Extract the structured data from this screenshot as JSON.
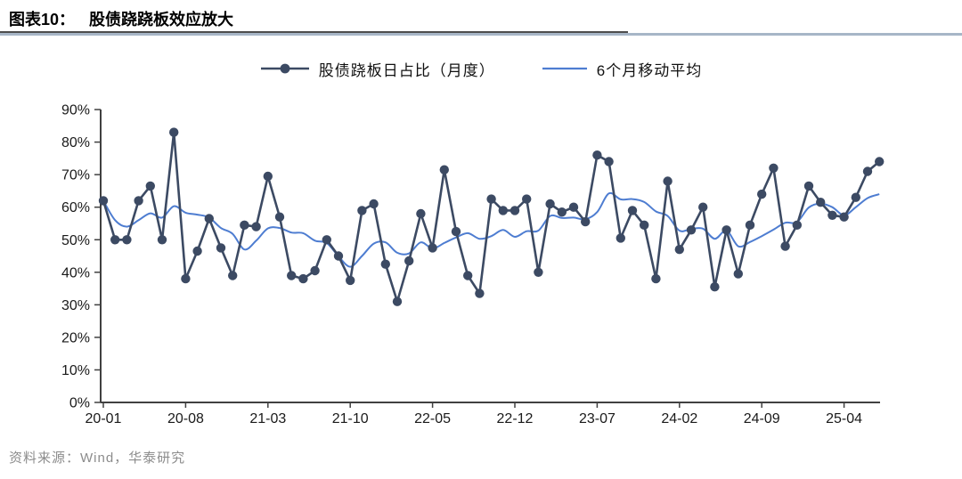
{
  "header": {
    "figure_label": "图表10：",
    "title": "股债跷跷板效应放大"
  },
  "legend": {
    "items": [
      {
        "label": "股债跷板日占比（月度）",
        "swatch": "line-with-dot-marker"
      },
      {
        "label": "6个月移动平均",
        "swatch": "line"
      }
    ]
  },
  "footer": {
    "source": "资料来源：Wind，华泰研究"
  },
  "colors": {
    "series_main": "#3C4A63",
    "series_ma": "#4E7DD1",
    "axis": "#404040",
    "tick_label": "#1a1a1a",
    "title_rule_dark": "#4d4d4d",
    "title_rule_blue": "#A7B6C7",
    "source_text": "#8c8c8c"
  },
  "chart_data": {
    "type": "line",
    "title": "股债跷跷板效应放大",
    "x_start": "2020-01",
    "x_freq": "monthly",
    "n_points": 67,
    "x_tick_labels": [
      "20-01",
      "20-08",
      "21-03",
      "21-10",
      "22-05",
      "22-12",
      "23-07",
      "24-02",
      "24-09",
      "25-04"
    ],
    "x_tick_indices": [
      0,
      7,
      14,
      21,
      28,
      35,
      42,
      49,
      56,
      63
    ],
    "ylim": [
      0,
      90
    ],
    "y_ticks": [
      0,
      10,
      20,
      30,
      40,
      50,
      60,
      70,
      80,
      90
    ],
    "y_tick_suffix": "%",
    "grid": false,
    "legend_position": "top-center",
    "series": [
      {
        "name": "股债跷板日占比（月度）",
        "style": "line+marker",
        "values": [
          62,
          50,
          50,
          62,
          66.5,
          50,
          83,
          38,
          46.5,
          56.5,
          47.5,
          39,
          54.5,
          54,
          69.5,
          57,
          39,
          38,
          40.5,
          50,
          45,
          37.5,
          59,
          61,
          42.5,
          31,
          43.5,
          58,
          47.5,
          71.5,
          52.5,
          39,
          33.5,
          62.5,
          59,
          59,
          62.5,
          40,
          61,
          58.5,
          60,
          55.5,
          76,
          74,
          50.5,
          59,
          54.5,
          38,
          68,
          47,
          53,
          60,
          35.5,
          53,
          39.5,
          54.5,
          64,
          72,
          48,
          54.5,
          66.5,
          61.5,
          57.5,
          57,
          63,
          71,
          74
        ]
      },
      {
        "name": "6个月移动平均",
        "style": "line",
        "window": 6,
        "values": [
          62,
          56,
          54,
          56,
          58.1,
          56.8,
          60.3,
          58.3,
          57.7,
          56.8,
          53.6,
          51.8,
          47,
          49.7,
          53.5,
          53.6,
          52.2,
          52,
          49.7,
          49,
          44.9,
          41.7,
          45,
          48.8,
          49.2,
          46,
          45.8,
          49.2,
          47.3,
          49,
          50.7,
          52,
          50.3,
          51.1,
          53,
          50.9,
          52.6,
          52.8,
          57.3,
          56.7,
          56.8,
          56.3,
          58.5,
          64.2,
          62.4,
          62.5,
          61.6,
          58.7,
          57.3,
          52.8,
          53.3,
          53.4,
          50.3,
          52.8,
          48,
          49.3,
          51.1,
          53.1,
          55.2,
          55.4,
          59.9,
          61.1,
          60,
          57.5,
          60,
          62.8,
          64
        ]
      }
    ]
  }
}
